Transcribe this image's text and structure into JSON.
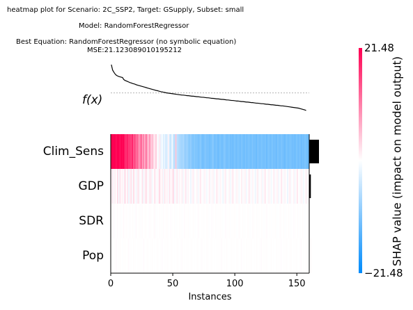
{
  "chart_data": {
    "type": "heatmap",
    "title_lines": [
      "heatmap plot for Scenario: 2C_SSP2, Target: GSupply, Subset: small",
      "Model: RandomForestRegressor",
      "Best Equation: RandomForestRegressor (no symbolic equation)",
      "MSE:21.123089010195212"
    ],
    "xlabel": "Instances",
    "fx_label": "f(x)",
    "features": [
      "Clim_Sens",
      "GDP",
      "SDR",
      "Pop"
    ],
    "x_ticks": [
      0,
      50,
      100,
      150
    ],
    "n_instances": 160,
    "colorbar": {
      "label": "SHAP value (impact on model output)",
      "max_label": "21.48",
      "min_label": "−21.48",
      "max": 21.48,
      "min": -21.48,
      "colors": [
        "#008bfb",
        "#ffffff",
        "#ff0052"
      ]
    },
    "importance": [
      14.6,
      2.4,
      0.2,
      0.15
    ],
    "fx_values": [
      44.8,
      41.8,
      40.6,
      39.6,
      38.9,
      38.5,
      38.2,
      38.0,
      37.8,
      37.6,
      36.5,
      36.0,
      35.7,
      35.4,
      35.1,
      34.8,
      34.6,
      34.3,
      34.1,
      33.9,
      33.6,
      33.4,
      33.2,
      33.0,
      32.8,
      32.6,
      32.4,
      32.2,
      32.0,
      31.8,
      31.6,
      31.4,
      31.2,
      31.0,
      30.8,
      30.6,
      30.4,
      30.3,
      30.1,
      29.9,
      29.7,
      29.6,
      29.4,
      29.3,
      29.1,
      29.0,
      28.9,
      28.8,
      28.7,
      28.6,
      28.5,
      28.4,
      28.3,
      28.2,
      28.1,
      28.0,
      27.9,
      27.8,
      27.8,
      27.7,
      27.6,
      27.5,
      27.5,
      27.4,
      27.3,
      27.2,
      27.2,
      27.1,
      27.0,
      26.9,
      26.9,
      26.8,
      26.7,
      26.6,
      26.6,
      26.5,
      26.4,
      26.3,
      26.3,
      26.2,
      26.1,
      26.0,
      26.0,
      25.9,
      25.8,
      25.7,
      25.7,
      25.6,
      25.5,
      25.4,
      25.4,
      25.3,
      25.2,
      25.1,
      25.1,
      25.0,
      24.9,
      24.8,
      24.8,
      24.7,
      24.6,
      24.5,
      24.5,
      24.4,
      24.3,
      24.2,
      24.2,
      24.1,
      24.0,
      23.9,
      23.9,
      23.8,
      23.7,
      23.6,
      23.6,
      23.5,
      23.4,
      23.3,
      23.3,
      23.2,
      23.1,
      23.0,
      23.0,
      22.9,
      22.8,
      22.7,
      22.7,
      22.6,
      22.5,
      22.4,
      22.4,
      22.3,
      22.2,
      22.1,
      22.1,
      22.0,
      21.9,
      21.8,
      21.8,
      21.7,
      21.6,
      21.5,
      21.4,
      21.3,
      21.2,
      21.1,
      21.0,
      20.9,
      20.8,
      20.7,
      20.6,
      20.5,
      20.3,
      20.1,
      19.9,
      19.7,
      19.5,
      19.2
    ],
    "fx_base": 29.0,
    "shap_values": [
      [
        21.48,
        21.48,
        21.48,
        21.48,
        20.5,
        21.48,
        21.48,
        20.0,
        21.48,
        20.8,
        21.48,
        18.0,
        17.5,
        19.0,
        16.5,
        17.0,
        15.5,
        18.5,
        14.0,
        16.0,
        12.0,
        13.5,
        10.0,
        9.0,
        14.5,
        8.0,
        11.0,
        6.5,
        12.5,
        7.0,
        5.5,
        9.5,
        4.0,
        6.0,
        3.0,
        1.5,
        4.5,
        0.5,
        -1.0,
        2.0,
        -2.0,
        -0.5,
        -3.0,
        -1.5,
        -4.0,
        -2.5,
        1.0,
        -3.5,
        -5.0,
        -0.8,
        -4.5,
        -6.0,
        5.0,
        -5.5,
        -6.5,
        -7.0,
        -7.5,
        -8.0,
        -7.0,
        -8.5,
        -9.0,
        -8.0,
        -9.5,
        -10.0,
        -9.0,
        -10.5,
        -11.0,
        -10.0,
        -11.0,
        -10.5,
        -11.5,
        -11.0,
        -10.0,
        -11.5,
        -12.0,
        -11.0,
        -10.5,
        -11.5,
        -11.0,
        -12.0,
        -11.5,
        -11.0,
        -10.0,
        -12.0,
        -11.5,
        -11.0,
        -12.5,
        -11.5,
        -11.0,
        -12.0,
        -11.5,
        -10.5,
        -11.0,
        -12.0,
        -11.5,
        -11.0,
        -12.0,
        -11.5,
        -12.5,
        -11.0,
        -11.5,
        -12.0,
        -11.0,
        -11.5,
        -12.0,
        -11.0,
        -11.5,
        -12.5,
        -11.0,
        -12.0,
        -11.5,
        -11.0,
        -12.0,
        -11.5,
        -11.0,
        -12.0,
        -11.5,
        -12.5,
        -11.0,
        -11.5,
        -12.0,
        -11.0,
        -11.5,
        -12.0,
        -11.0,
        -12.5,
        -11.5,
        -11.0,
        -12.0,
        -11.5,
        -11.0,
        -12.0,
        -11.5,
        -12.5,
        -11.0,
        -11.5,
        -12.0,
        -11.0,
        -11.5,
        -12.0,
        -12.5,
        -11.0,
        -11.5,
        -12.0,
        -11.0,
        -11.5,
        -12.0,
        -11.5,
        -12.5,
        -11.0,
        -11.5,
        -12.0,
        -11.0,
        -12.5,
        -11.5,
        -12.0,
        -11.0,
        -11.5,
        -12.0,
        -12.5
      ],
      [
        0.5,
        2.0,
        -0.5,
        1.5,
        0.0,
        3.0,
        -1.0,
        2.5,
        0.5,
        1.0,
        -0.5,
        3.5,
        0.0,
        2.0,
        -1.5,
        1.0,
        2.5,
        -0.5,
        3.0,
        0.5,
        -1.0,
        1.5,
        2.0,
        -0.5,
        0.0,
        2.5,
        -1.0,
        1.0,
        3.0,
        0.5,
        -0.5,
        2.0,
        1.5,
        -1.0,
        0.0,
        2.5,
        0.5,
        -0.5,
        1.0,
        3.5,
        0.0,
        1.5,
        -1.0,
        2.0,
        0.5,
        1.0,
        -0.5,
        2.5,
        0.0,
        1.5,
        3.0,
        -1.0,
        0.5,
        2.0,
        -0.5,
        1.0,
        0.0,
        1.5,
        -1.0,
        0.5,
        2.0,
        -0.5,
        1.0,
        0.0,
        -1.5,
        0.5,
        1.5,
        -0.5,
        0.0,
        1.0,
        -1.0,
        0.5,
        2.0,
        0.0,
        -0.5,
        1.0,
        0.5,
        -1.0,
        0.0,
        1.5,
        -0.5,
        0.5,
        1.0,
        -1.0,
        0.0,
        2.0,
        0.5,
        -0.5,
        1.0,
        0.0,
        -1.5,
        0.5,
        1.5,
        -0.5,
        0.0,
        1.0,
        -1.0,
        0.5,
        2.0,
        0.0,
        -0.5,
        1.0,
        0.5,
        -1.0,
        0.0,
        1.5,
        -0.5,
        0.5,
        1.0,
        -1.0,
        0.0,
        2.0,
        0.5,
        -0.5,
        1.0,
        0.0,
        -1.5,
        0.5,
        1.5,
        -0.5,
        0.0,
        1.0,
        -1.0,
        0.5,
        2.0,
        0.0,
        -0.5,
        1.0,
        0.5,
        -1.0,
        0.0,
        1.5,
        -0.5,
        0.5,
        1.0,
        -1.0,
        0.0,
        2.0,
        0.5,
        -0.5,
        1.0,
        0.0,
        -1.5,
        0.5,
        1.5,
        -0.5,
        0.0,
        1.0,
        -1.0,
        0.5,
        2.0,
        0.0,
        -0.5,
        1.0,
        0.5,
        -1.0,
        0.0,
        1.5,
        -0.5,
        0.5
      ],
      [
        0.2,
        0.0,
        0.4,
        -0.1,
        0.1,
        0.3,
        0.0,
        0.2,
        -0.2,
        0.1,
        0.5,
        0.0,
        0.2,
        0.1,
        -0.1,
        0.3,
        0.0,
        0.2,
        0.1,
        -0.2,
        0.4,
        0.0,
        0.1,
        0.2,
        -0.1,
        0.3,
        0.0,
        0.1,
        0.2,
        0.0,
        -0.1,
        0.3,
        0.1,
        0.0,
        0.2,
        0.4,
        -0.1,
        0.1,
        0.0,
        0.2,
        0.1,
        -0.2,
        0.3,
        0.0,
        0.1,
        0.2,
        -0.1,
        0.0,
        0.3,
        0.1,
        0.0,
        0.2,
        -0.1,
        0.1,
        0.0,
        0.2,
        0.1,
        -0.1,
        0.0,
        0.3,
        0.1,
        0.0,
        0.2,
        -0.1,
        0.1,
        0.0,
        0.2,
        0.1,
        -0.1,
        0.0,
        0.3,
        0.1,
        0.0,
        0.2,
        -0.1,
        0.1,
        0.0,
        0.2,
        0.1,
        -0.1,
        0.0,
        0.3,
        0.1,
        0.0,
        0.2,
        -0.1,
        0.1,
        0.0,
        0.2,
        0.1,
        -0.1,
        0.0,
        0.3,
        0.1,
        0.0,
        0.2,
        -0.1,
        0.1,
        0.0,
        0.2,
        0.1,
        -0.1,
        0.0,
        0.3,
        0.1,
        0.0,
        0.2,
        -0.1,
        0.1,
        0.0,
        0.2,
        0.1,
        -0.1,
        0.0,
        0.3,
        0.1,
        0.0,
        0.2,
        -0.1,
        0.1,
        0.0,
        0.2,
        0.1,
        -0.1,
        0.0,
        0.3,
        0.1,
        0.0,
        0.2,
        -0.1,
        0.1,
        0.0,
        0.2,
        0.1,
        -0.1,
        0.0,
        0.3,
        0.1,
        0.0,
        0.2,
        -0.1,
        0.1,
        0.0,
        0.2,
        0.1,
        -0.1,
        0.0,
        0.3,
        0.1,
        0.0,
        0.2,
        -0.1,
        0.1,
        0.0,
        0.2,
        0.1,
        -0.1,
        0.0,
        0.3
      ],
      [
        0.1,
        0.2,
        0.0,
        0.1,
        0.3,
        0.0,
        0.1,
        0.2,
        0.0,
        -0.1,
        0.1,
        0.2,
        0.0,
        0.1,
        0.3,
        0.0,
        0.1,
        0.0,
        0.2,
        0.1,
        0.0,
        0.1,
        0.2,
        0.0,
        0.1,
        0.0,
        0.3,
        0.1,
        0.0,
        0.2,
        0.1,
        0.0,
        0.1,
        0.2,
        0.0,
        0.1,
        0.0,
        0.2,
        0.1,
        0.0,
        0.1,
        0.3,
        0.0,
        0.1,
        0.0,
        0.2,
        0.1,
        0.0,
        0.1,
        0.2,
        0.0,
        0.1,
        0.0,
        0.2,
        0.1,
        0.0,
        0.1,
        0.3,
        0.0,
        0.1,
        0.0,
        0.2,
        0.1,
        0.0,
        0.1,
        0.2,
        0.0,
        0.1,
        0.0,
        0.2,
        0.1,
        0.0,
        0.1,
        0.3,
        0.0,
        0.1,
        0.0,
        0.2,
        0.1,
        0.0,
        0.1,
        0.2,
        0.0,
        0.1,
        0.0,
        0.2,
        0.1,
        0.0,
        0.1,
        0.3,
        0.0,
        0.1,
        0.0,
        0.2,
        0.1,
        0.0,
        0.1,
        0.2,
        0.0,
        0.1,
        0.0,
        0.2,
        0.1,
        0.0,
        0.1,
        0.3,
        0.0,
        0.1,
        0.0,
        0.2,
        0.1,
        0.0,
        0.1,
        0.2,
        0.0,
        0.1,
        0.0,
        0.2,
        0.1,
        0.0,
        0.1,
        0.3,
        0.0,
        0.1,
        0.0,
        0.2,
        0.1,
        0.0,
        0.1,
        0.2,
        0.0,
        0.1,
        0.0,
        0.2,
        0.1,
        0.0,
        0.1,
        0.3,
        0.0,
        0.1,
        0.0,
        0.2,
        0.1,
        0.0,
        0.1,
        0.2,
        0.0,
        0.1,
        0.0,
        0.2,
        0.1,
        0.0,
        0.1,
        0.3,
        0.0,
        0.1,
        0.0,
        0.2,
        0.1,
        0.0,
        0.1,
        0.2
      ]
    ]
  }
}
